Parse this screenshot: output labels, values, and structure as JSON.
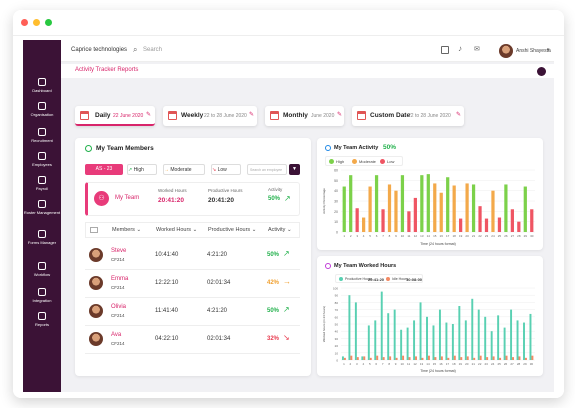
{
  "app": {
    "company": "Caprice technologies",
    "search_placeholder": "Search",
    "user_name": "Anshi Shayesta"
  },
  "sidebar": {
    "items": [
      {
        "label": "Dashboard",
        "icon": "grid-icon"
      },
      {
        "label": "Organisation",
        "icon": "org-icon"
      },
      {
        "label": "Recruitment",
        "icon": "recruit-icon"
      },
      {
        "label": "Employees",
        "icon": "users-icon"
      },
      {
        "label": "Payroll",
        "icon": "wallet-icon"
      },
      {
        "label": "Roster Management",
        "icon": "calendar-icon"
      },
      {
        "label": "Forms Manager",
        "icon": "form-icon"
      },
      {
        "label": "Workflow",
        "icon": "workflow-icon"
      },
      {
        "label": "Integration",
        "icon": "plug-icon"
      },
      {
        "label": "Reports",
        "icon": "report-icon"
      }
    ]
  },
  "page_title": "Activity Tracker Reports",
  "tabs": [
    {
      "label": "Daily",
      "date": "22 June 2020"
    },
    {
      "label": "Weekly",
      "date": "22 to 28 June 2020"
    },
    {
      "label": "Monthly",
      "date": "June 2020"
    },
    {
      "label": "Custom Date",
      "date": "22 to 28 June 2020"
    }
  ],
  "team": {
    "title": "My Team Members",
    "range_badge": "AS - 23",
    "filters": {
      "high": "High",
      "moderate": "Moderate",
      "low": "Low"
    },
    "search_placeholder": "Search an employee",
    "summary": {
      "label": "My Team",
      "worked_label": "Worked Hours",
      "worked": "20:41:20",
      "productive_label": "Productive Hours",
      "productive": "20:41:20",
      "activity_label": "Activity",
      "activity": "50%"
    },
    "columns": [
      "Members",
      "Worked Hours",
      "Productive Hours",
      "Activity"
    ],
    "rows": [
      {
        "name": "Steve",
        "code": "CF214",
        "worked": "10:41:40",
        "productive": "4:21:20",
        "activity": "50%",
        "level": "high",
        "color": "#22b14c"
      },
      {
        "name": "Emma",
        "code": "CF214",
        "worked": "12:22:10",
        "productive": "02:01:34",
        "activity": "42%",
        "level": "moderate",
        "color": "#f0a030"
      },
      {
        "name": "Olivia",
        "code": "CF214",
        "worked": "11:41:40",
        "productive": "4:21:20",
        "activity": "50%",
        "level": "high",
        "color": "#22b14c"
      },
      {
        "name": "Ava",
        "code": "CF214",
        "worked": "04:22:10",
        "productive": "02:01:34",
        "activity": "32%",
        "level": "low",
        "color": "#e83b4f"
      }
    ]
  },
  "activity_panel": {
    "title": "My Team Activity",
    "value": "50%",
    "legend": [
      "High",
      "Moderate",
      "Low"
    ],
    "legend_colors": [
      "#7cd14a",
      "#f3a94a",
      "#ef5563"
    ]
  },
  "worked_panel": {
    "title": "My Team Worked Hours",
    "productive_label": "Productive Hours",
    "productive": "20:41:20",
    "idle_label": "Idle Hours",
    "idle": "10:08:00"
  },
  "chart_data": [
    {
      "type": "bar",
      "xlabel": "Time (24 hours format)",
      "ylabel": "Activity Percentage",
      "ylim": [
        0,
        60
      ],
      "yticks": [
        60,
        50,
        40,
        30,
        20,
        10,
        0
      ],
      "categories": [
        "1",
        "2",
        "3",
        "4",
        "5",
        "6",
        "7",
        "8",
        "9",
        "10",
        "11",
        "12",
        "13",
        "14",
        "15",
        "16",
        "17",
        "18",
        "19",
        "20",
        "21",
        "22",
        "23",
        "24",
        "25",
        "26",
        "27",
        "28",
        "29",
        "30"
      ],
      "values": [
        44,
        55,
        23,
        14,
        44,
        55,
        22,
        46,
        40,
        55,
        20,
        33,
        55,
        56,
        47,
        38,
        53,
        45,
        13,
        47,
        46,
        25,
        13,
        40,
        14,
        46,
        22,
        10,
        44,
        22
      ],
      "levels": [
        "high",
        "high",
        "low",
        "moderate",
        "moderate",
        "high",
        "low",
        "moderate",
        "moderate",
        "high",
        "low",
        "low",
        "high",
        "high",
        "moderate",
        "moderate",
        "high",
        "moderate",
        "low",
        "moderate",
        "high",
        "low",
        "low",
        "moderate",
        "low",
        "high",
        "low",
        "low",
        "high",
        "low"
      ],
      "grid": true
    },
    {
      "type": "bar",
      "xlabel": "Time (24 hours format)",
      "ylabel": "Worked hours (in 24 hours)",
      "ylim": [
        0,
        100
      ],
      "yticks": [
        100,
        90,
        80,
        70,
        60,
        50,
        40,
        30,
        20,
        10,
        0
      ],
      "categories": [
        "1",
        "2",
        "3",
        "4",
        "5",
        "6",
        "7",
        "8",
        "9",
        "10",
        "11",
        "12",
        "13",
        "14",
        "15",
        "16",
        "17",
        "18",
        "19",
        "20",
        "21",
        "22",
        "23",
        "24",
        "25",
        "26",
        "27",
        "28",
        "29",
        "30"
      ],
      "series": [
        {
          "name": "Productive Hours",
          "color": "#59d0b2",
          "values": [
            5,
            90,
            80,
            5,
            48,
            55,
            95,
            65,
            70,
            42,
            45,
            55,
            80,
            60,
            48,
            70,
            52,
            50,
            75,
            55,
            85,
            70,
            60,
            40,
            62,
            45,
            70,
            55,
            52,
            64
          ]
        },
        {
          "name": "Idle Hours",
          "color": "#f38a64",
          "values": [
            3,
            6,
            4,
            5,
            3,
            6,
            4,
            5,
            3,
            6,
            4,
            5,
            3,
            6,
            4,
            5,
            3,
            6,
            4,
            5,
            3,
            6,
            4,
            5,
            3,
            6,
            4,
            5,
            3,
            6
          ]
        }
      ],
      "grid": true
    }
  ]
}
